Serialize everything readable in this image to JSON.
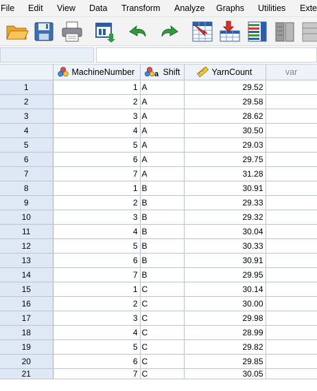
{
  "menu": [
    {
      "label": "File"
    },
    {
      "label": "Edit"
    },
    {
      "label": "View"
    },
    {
      "label": "Data"
    },
    {
      "label": "Transform"
    },
    {
      "label": "Analyze"
    },
    {
      "label": "Graphs"
    },
    {
      "label": "Utilities"
    },
    {
      "label": "Exte"
    }
  ],
  "toolbar": {
    "icons": [
      "open-folder-icon",
      "save-icon",
      "print-icon",
      "recall-dialog-icon",
      "undo-icon",
      "redo-icon",
      "goto-case-icon",
      "goto-variable-icon",
      "variables-icon",
      "find-icon"
    ]
  },
  "colors": {
    "row_header": "#dfe9f5",
    "col_header": "#eef3f9",
    "gridline": "#b8c4d2"
  },
  "columns": [
    {
      "name": "MachineNumber",
      "type": "nominal",
      "icon": "nominal-measure-icon"
    },
    {
      "name": "Shift",
      "type": "nominal-string",
      "icon": "nominal-string-icon"
    },
    {
      "name": "YarnCount",
      "type": "scale",
      "icon": "scale-ruler-icon"
    },
    {
      "name": "var",
      "type": "empty"
    }
  ],
  "rows": [
    {
      "n": "1",
      "machine": "1",
      "shift": "A",
      "yarn": "29.52"
    },
    {
      "n": "2",
      "machine": "2",
      "shift": "A",
      "yarn": "29.58"
    },
    {
      "n": "3",
      "machine": "3",
      "shift": "A",
      "yarn": "28.62"
    },
    {
      "n": "4",
      "machine": "4",
      "shift": "A",
      "yarn": "30.50"
    },
    {
      "n": "5",
      "machine": "5",
      "shift": "A",
      "yarn": "29.03"
    },
    {
      "n": "6",
      "machine": "6",
      "shift": "A",
      "yarn": "29.75"
    },
    {
      "n": "7",
      "machine": "7",
      "shift": "A",
      "yarn": "31.28"
    },
    {
      "n": "8",
      "machine": "1",
      "shift": "B",
      "yarn": "30.91"
    },
    {
      "n": "9",
      "machine": "2",
      "shift": "B",
      "yarn": "29.33"
    },
    {
      "n": "10",
      "machine": "3",
      "shift": "B",
      "yarn": "29.32"
    },
    {
      "n": "11",
      "machine": "4",
      "shift": "B",
      "yarn": "30.04"
    },
    {
      "n": "12",
      "machine": "5",
      "shift": "B",
      "yarn": "30.33"
    },
    {
      "n": "13",
      "machine": "6",
      "shift": "B",
      "yarn": "30.91"
    },
    {
      "n": "14",
      "machine": "7",
      "shift": "B",
      "yarn": "29.95"
    },
    {
      "n": "15",
      "machine": "1",
      "shift": "C",
      "yarn": "30.14"
    },
    {
      "n": "16",
      "machine": "2",
      "shift": "C",
      "yarn": "30.00"
    },
    {
      "n": "17",
      "machine": "3",
      "shift": "C",
      "yarn": "29.98"
    },
    {
      "n": "18",
      "machine": "4",
      "shift": "C",
      "yarn": "28.99"
    },
    {
      "n": "19",
      "machine": "5",
      "shift": "C",
      "yarn": "29.82"
    },
    {
      "n": "20",
      "machine": "6",
      "shift": "C",
      "yarn": "29.85"
    },
    {
      "n": "21",
      "machine": "7",
      "shift": "C",
      "yarn": "30.05"
    }
  ]
}
